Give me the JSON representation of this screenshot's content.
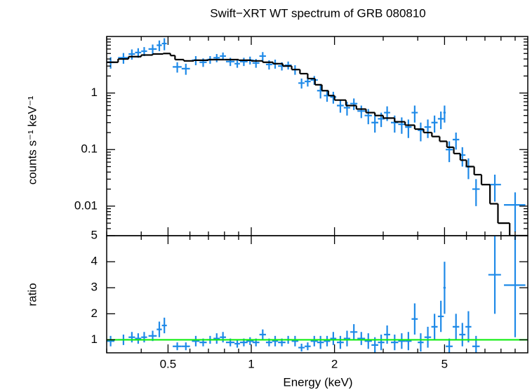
{
  "chart_data": [
    {
      "type": "scatter",
      "title": "Swift−XRT WT spectrum of GRB 080810",
      "ylabel": "counts s⁻¹ keV⁻¹",
      "xscale": "log",
      "yscale": "log",
      "xlim": [
        0.3,
        10
      ],
      "ylim": [
        0.003,
        10
      ],
      "yticks": [
        0.01,
        0.1,
        1
      ],
      "yminorticks": [
        0.004,
        0.005,
        0.006,
        0.007,
        0.008,
        0.009,
        0.02,
        0.03,
        0.04,
        0.05,
        0.06,
        0.07,
        0.08,
        0.09,
        0.2,
        0.3,
        0.4,
        0.5,
        0.6,
        0.7,
        0.8,
        0.9,
        2,
        3,
        4,
        5,
        6,
        7,
        8,
        9
      ],
      "series": [
        {
          "color": "#1f8ae8",
          "x": [
            0.31,
            0.345,
            0.37,
            0.39,
            0.41,
            0.44,
            0.465,
            0.485,
            0.54,
            0.58,
            0.63,
            0.67,
            0.71,
            0.75,
            0.79,
            0.84,
            0.89,
            0.94,
            0.99,
            1.04,
            1.1,
            1.16,
            1.22,
            1.29,
            1.36,
            1.44,
            1.52,
            1.6,
            1.69,
            1.78,
            1.88,
            1.98,
            2.1,
            2.22,
            2.35,
            2.5,
            2.65,
            2.8,
            2.95,
            3.1,
            3.3,
            3.5,
            3.7,
            3.9,
            4.1,
            4.35,
            4.6,
            4.85,
            5.0,
            5.2,
            5.5,
            5.8,
            6.1,
            6.5,
            7.6,
            9.0
          ],
          "xerr": [
            0.01,
            0.015,
            0.01,
            0.01,
            0.01,
            0.015,
            0.01,
            0.01,
            0.02,
            0.02,
            0.02,
            0.02,
            0.02,
            0.02,
            0.02,
            0.03,
            0.02,
            0.03,
            0.03,
            0.03,
            0.03,
            0.03,
            0.03,
            0.04,
            0.04,
            0.04,
            0.04,
            0.04,
            0.05,
            0.05,
            0.05,
            0.05,
            0.06,
            0.06,
            0.07,
            0.08,
            0.08,
            0.08,
            0.08,
            0.08,
            0.1,
            0.1,
            0.1,
            0.1,
            0.1,
            0.12,
            0.12,
            0.12,
            0.05,
            0.15,
            0.15,
            0.15,
            0.15,
            0.2,
            0.4,
            0.8
          ],
          "values": [
            3.5,
            4.2,
            4.9,
            5.2,
            5.5,
            6.0,
            7.0,
            7.5,
            2.9,
            2.7,
            3.8,
            3.5,
            3.9,
            4.2,
            4.5,
            3.6,
            3.3,
            3.6,
            3.8,
            3.4,
            4.5,
            3.2,
            3.3,
            3.0,
            3.1,
            2.6,
            1.5,
            1.6,
            1.7,
            1.1,
            0.9,
            0.85,
            0.6,
            0.55,
            0.65,
            0.48,
            0.4,
            0.3,
            0.35,
            0.45,
            0.3,
            0.28,
            0.25,
            0.45,
            0.22,
            0.25,
            0.3,
            0.35,
            0.45,
            0.1,
            0.15,
            0.08,
            0.05,
            0.02,
            0.024,
            0.0105
          ],
          "yerr": [
            0.8,
            0.9,
            1.0,
            1.0,
            1.0,
            1.2,
            1.5,
            1.8,
            0.6,
            0.6,
            0.7,
            0.6,
            0.6,
            0.7,
            0.7,
            0.6,
            0.5,
            0.6,
            0.6,
            0.6,
            0.8,
            0.6,
            0.6,
            0.5,
            0.5,
            0.5,
            0.3,
            0.3,
            0.3,
            0.3,
            0.2,
            0.2,
            0.15,
            0.15,
            0.15,
            0.12,
            0.12,
            0.1,
            0.1,
            0.13,
            0.1,
            0.09,
            0.09,
            0.15,
            0.08,
            0.09,
            0.1,
            0.12,
            0.15,
            0.04,
            0.05,
            0.03,
            0.02,
            0.01,
            0.012,
            0.007
          ]
        }
      ],
      "model": {
        "color": "#000000",
        "edges": [
          0.3,
          0.33,
          0.36,
          0.4,
          0.44,
          0.48,
          0.51,
          0.53,
          0.57,
          0.62,
          0.7,
          0.8,
          0.9,
          1.0,
          1.1,
          1.2,
          1.3,
          1.4,
          1.5,
          1.6,
          1.7,
          1.8,
          1.9,
          2.0,
          2.2,
          2.4,
          2.6,
          2.8,
          3.0,
          3.3,
          3.6,
          3.9,
          4.2,
          4.5,
          4.8,
          5.1,
          5.4,
          5.7,
          6.0,
          6.4,
          6.8,
          7.3,
          7.8,
          8.6,
          10
        ],
        "values": [
          3.5,
          4.0,
          4.4,
          4.7,
          4.9,
          5.0,
          4.6,
          3.9,
          3.7,
          3.8,
          3.9,
          3.9,
          3.8,
          3.7,
          3.5,
          3.3,
          3.0,
          2.6,
          2.2,
          1.8,
          1.4,
          1.1,
          0.9,
          0.75,
          0.6,
          0.52,
          0.45,
          0.4,
          0.36,
          0.31,
          0.27,
          0.23,
          0.2,
          0.17,
          0.14,
          0.11,
          0.085,
          0.065,
          0.05,
          0.036,
          0.024,
          0.011,
          0.005,
          0.003
        ]
      }
    },
    {
      "type": "scatter",
      "xlabel": "Energy (keV)",
      "ylabel": "ratio",
      "xscale": "log",
      "yscale": "linear",
      "xlim": [
        0.3,
        10
      ],
      "ylim": [
        0.5,
        5
      ],
      "xticks": [
        0.5,
        1,
        2,
        5
      ],
      "xminorticks": [
        0.3,
        0.4,
        0.6,
        0.7,
        0.8,
        0.9,
        3,
        4,
        6,
        7,
        8,
        9
      ],
      "yticks": [
        1,
        2,
        3,
        4,
        5
      ],
      "reference": {
        "value": 1,
        "color": "#11ee11"
      },
      "series": [
        {
          "color": "#1f8ae8",
          "x": [
            0.31,
            0.345,
            0.37,
            0.39,
            0.41,
            0.44,
            0.465,
            0.485,
            0.54,
            0.58,
            0.63,
            0.67,
            0.71,
            0.75,
            0.79,
            0.84,
            0.89,
            0.94,
            0.99,
            1.04,
            1.1,
            1.16,
            1.22,
            1.29,
            1.36,
            1.44,
            1.52,
            1.6,
            1.69,
            1.78,
            1.88,
            1.98,
            2.1,
            2.22,
            2.35,
            2.5,
            2.65,
            2.8,
            2.95,
            3.1,
            3.3,
            3.5,
            3.7,
            3.9,
            4.1,
            4.35,
            4.6,
            4.85,
            5.0,
            5.2,
            5.5,
            5.8,
            6.1,
            6.5,
            7.6,
            9.0
          ],
          "xerr": [
            0.01,
            0.015,
            0.01,
            0.01,
            0.01,
            0.015,
            0.01,
            0.01,
            0.02,
            0.02,
            0.02,
            0.02,
            0.02,
            0.02,
            0.02,
            0.03,
            0.02,
            0.03,
            0.03,
            0.03,
            0.03,
            0.03,
            0.03,
            0.04,
            0.04,
            0.04,
            0.04,
            0.04,
            0.05,
            0.05,
            0.05,
            0.05,
            0.06,
            0.06,
            0.07,
            0.08,
            0.08,
            0.08,
            0.08,
            0.08,
            0.1,
            0.1,
            0.1,
            0.1,
            0.1,
            0.12,
            0.12,
            0.12,
            0.05,
            0.15,
            0.15,
            0.15,
            0.15,
            0.2,
            0.4,
            0.8
          ],
          "values": [
            0.95,
            1.0,
            1.1,
            1.05,
            1.1,
            1.15,
            1.4,
            1.55,
            0.75,
            0.75,
            0.95,
            0.9,
            1.0,
            1.05,
            1.1,
            0.9,
            0.85,
            0.9,
            0.95,
            0.9,
            1.2,
            0.9,
            0.95,
            0.9,
            1.0,
            0.95,
            0.7,
            0.75,
            0.95,
            0.9,
            0.95,
            1.05,
            0.9,
            1.05,
            1.3,
            1.05,
            0.95,
            0.8,
            0.9,
            1.2,
            0.9,
            0.95,
            0.95,
            1.8,
            0.9,
            1.1,
            1.5,
            1.9,
            3.0,
            0.75,
            1.5,
            1.2,
            1.5,
            0.75,
            3.5,
            3.1
          ],
          "yerr": [
            0.2,
            0.2,
            0.2,
            0.2,
            0.2,
            0.2,
            0.3,
            0.3,
            0.15,
            0.15,
            0.2,
            0.15,
            0.15,
            0.2,
            0.2,
            0.15,
            0.15,
            0.15,
            0.15,
            0.15,
            0.2,
            0.15,
            0.2,
            0.15,
            0.15,
            0.2,
            0.15,
            0.15,
            0.2,
            0.25,
            0.2,
            0.25,
            0.25,
            0.3,
            0.3,
            0.25,
            0.3,
            0.3,
            0.3,
            0.35,
            0.3,
            0.3,
            0.35,
            0.6,
            0.35,
            0.4,
            0.5,
            0.6,
            1.0,
            0.3,
            0.5,
            0.45,
            0.6,
            0.4,
            1.5,
            2.0
          ]
        }
      ]
    }
  ]
}
